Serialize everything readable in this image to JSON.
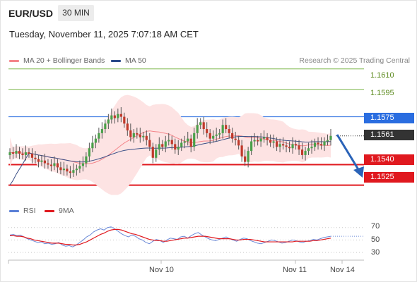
{
  "header": {
    "symbol": "EUR/USD",
    "timeframe": "30 MIN"
  },
  "timestamp": "Tuesday, November 11, 2025 7:07:18 AM CET",
  "legend": {
    "bollinger": {
      "label": "MA 20 + Bollinger Bands",
      "color": "#f4858a"
    },
    "ma50": {
      "label": "MA 50",
      "color": "#2a4a8a"
    }
  },
  "credit": "Research © 2025 Trading Central",
  "levels": [
    {
      "name": "resistance-2",
      "label": "1.1610",
      "color": "#7ab648",
      "value": 1.161,
      "style": "green"
    },
    {
      "name": "resistance-1",
      "label": "1.1595",
      "color": "#7ab648",
      "value": 1.1595,
      "style": "green"
    },
    {
      "name": "pivot",
      "label": "1.1575",
      "color": "#2a6de0",
      "value": 1.1575,
      "style": "blue"
    },
    {
      "name": "last-price",
      "label": "1.1561",
      "color": "#333333",
      "value": 1.1561,
      "style": "last"
    },
    {
      "name": "support-1",
      "label": "1.1540",
      "color": "#e0191f",
      "value": 1.154,
      "style": "red"
    },
    {
      "name": "support-2",
      "label": "1.1525",
      "color": "#e0191f",
      "value": 1.1525,
      "style": "red"
    }
  ],
  "rsi_panel": {
    "legend": {
      "rsi": "RSI",
      "ma9": "9MA"
    },
    "colors": {
      "rsi": "#5a7fd6",
      "ma9": "#e0191f"
    },
    "levels": [
      "70",
      "50",
      "30"
    ]
  },
  "xaxis": {
    "labels": [
      "Nov 10",
      "Nov 11",
      "Nov 14"
    ]
  },
  "chart_data": {
    "type": "candlestick",
    "price_range": [
      1.1515,
      1.1615
    ],
    "close": [
      1.1549,
      1.1548,
      1.155,
      1.1548,
      1.1547,
      1.1549,
      1.1548,
      1.1545,
      1.1544,
      1.1542,
      1.1543,
      1.1541,
      1.154,
      1.1539,
      1.1541,
      1.1538,
      1.1536,
      1.1537,
      1.1535,
      1.1534,
      1.1536,
      1.1537,
      1.1539,
      1.1541,
      1.1546,
      1.1552,
      1.1556,
      1.1559,
      1.1563,
      1.1566,
      1.157,
      1.1573,
      1.1576,
      1.1574,
      1.1577,
      1.1575,
      1.157,
      1.1565,
      1.156,
      1.1563,
      1.1562,
      1.156,
      1.1561,
      1.1558,
      1.1553,
      1.1545,
      1.1551,
      1.1555,
      1.1553,
      1.1557,
      1.1558,
      1.1555,
      1.1551,
      1.1553,
      1.1556,
      1.1557,
      1.1559,
      1.1553,
      1.1563,
      1.1569,
      1.1571,
      1.1566,
      1.1563,
      1.1559,
      1.1561,
      1.1562,
      1.1563,
      1.1569,
      1.1566,
      1.1563,
      1.1559,
      1.1558,
      1.1554,
      1.1546,
      1.1542,
      1.155,
      1.1557,
      1.1558,
      1.1557,
      1.1559,
      1.156,
      1.1558,
      1.1556,
      1.1557,
      1.1553,
      1.1555,
      1.1554,
      1.1553,
      1.1552,
      1.1555,
      1.1554,
      1.1551,
      1.1547,
      1.155,
      1.1552,
      1.1553,
      1.1556,
      1.1555,
      1.1554,
      1.1557,
      1.1558,
      1.1561
    ],
    "rsi": [
      58,
      59,
      57,
      58,
      55,
      52,
      50,
      48,
      46,
      47,
      44,
      45,
      43,
      44,
      46,
      42,
      40,
      41,
      39,
      42,
      46,
      50,
      55,
      58,
      63,
      66,
      68,
      66,
      70,
      71,
      68,
      64,
      60,
      57,
      55,
      58,
      56,
      52,
      50,
      46,
      44,
      48,
      51,
      49,
      46,
      50,
      53,
      52,
      51,
      55,
      56,
      53,
      57,
      60,
      62,
      58,
      55,
      52,
      50,
      49,
      51,
      53,
      55,
      52,
      50,
      48,
      51,
      53,
      52,
      49,
      47,
      45,
      44,
      46,
      48,
      50,
      49,
      47,
      45,
      46,
      48,
      50,
      49,
      47,
      46,
      48,
      49,
      51,
      50,
      52,
      54,
      55,
      56
    ],
    "ma9": [
      57,
      57,
      56,
      56,
      55,
      53,
      52,
      50,
      49,
      48,
      47,
      46,
      45,
      45,
      45,
      44,
      43,
      43,
      42,
      42,
      43,
      45,
      47,
      50,
      53,
      56,
      59,
      61,
      64,
      66,
      67,
      67,
      66,
      64,
      62,
      60,
      59,
      57,
      55,
      53,
      51,
      50,
      49,
      49,
      48,
      48,
      49,
      50,
      51,
      52,
      53,
      53,
      54,
      55,
      56,
      56,
      56,
      55,
      54,
      53,
      52,
      52,
      52,
      52,
      51,
      50,
      50,
      51,
      51,
      51,
      50,
      49,
      48,
      47,
      47,
      47,
      47,
      47,
      47,
      47,
      47,
      47,
      48,
      48,
      48,
      48,
      48,
      49,
      49,
      50,
      51,
      52,
      53
    ]
  }
}
